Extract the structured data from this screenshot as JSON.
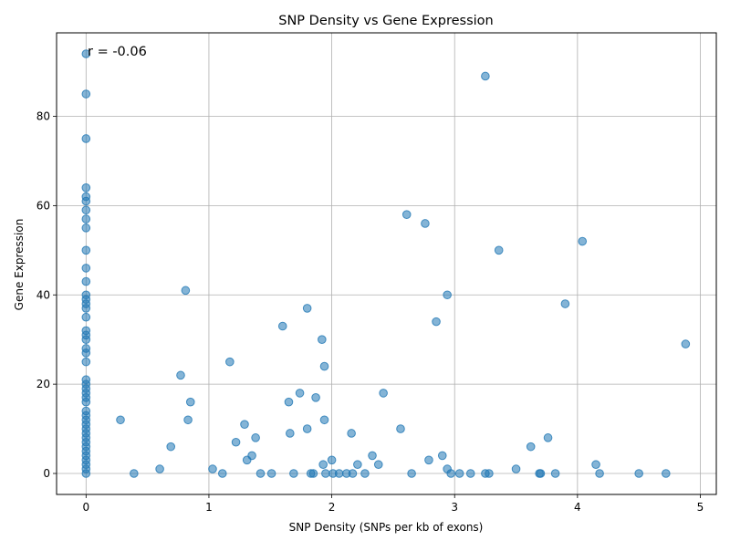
{
  "chart_data": {
    "type": "scatter",
    "title": "SNP Density vs Gene Expression",
    "xlabel": "SNP Density (SNPs per kb of exons)",
    "ylabel": "Gene Expression",
    "annotation": "r = -0.06",
    "xlim": [
      -0.24,
      5.13
    ],
    "ylim": [
      -4.7,
      98.7
    ],
    "xticks": [
      0,
      1,
      2,
      3,
      4,
      5
    ],
    "yticks": [
      0,
      20,
      40,
      60,
      80
    ],
    "grid": true,
    "point_color": "#1f77b4",
    "points": [
      {
        "x": 0,
        "y": 94
      },
      {
        "x": 0,
        "y": 85
      },
      {
        "x": 0,
        "y": 75
      },
      {
        "x": 0,
        "y": 64
      },
      {
        "x": 0,
        "y": 62
      },
      {
        "x": 0,
        "y": 61
      },
      {
        "x": 0,
        "y": 59
      },
      {
        "x": 0,
        "y": 57
      },
      {
        "x": 0,
        "y": 55
      },
      {
        "x": 0,
        "y": 50
      },
      {
        "x": 0,
        "y": 46
      },
      {
        "x": 0,
        "y": 43
      },
      {
        "x": 0,
        "y": 40
      },
      {
        "x": 0,
        "y": 39
      },
      {
        "x": 0,
        "y": 38
      },
      {
        "x": 0,
        "y": 37
      },
      {
        "x": 0,
        "y": 35
      },
      {
        "x": 0,
        "y": 32
      },
      {
        "x": 0,
        "y": 31
      },
      {
        "x": 0,
        "y": 30
      },
      {
        "x": 0,
        "y": 28
      },
      {
        "x": 0,
        "y": 27
      },
      {
        "x": 0,
        "y": 25
      },
      {
        "x": 0,
        "y": 21
      },
      {
        "x": 0,
        "y": 20
      },
      {
        "x": 0,
        "y": 19
      },
      {
        "x": 0,
        "y": 18
      },
      {
        "x": 0,
        "y": 17
      },
      {
        "x": 0,
        "y": 16
      },
      {
        "x": 0,
        "y": 14
      },
      {
        "x": 0,
        "y": 13
      },
      {
        "x": 0,
        "y": 12
      },
      {
        "x": 0,
        "y": 11
      },
      {
        "x": 0,
        "y": 10
      },
      {
        "x": 0,
        "y": 9
      },
      {
        "x": 0,
        "y": 8
      },
      {
        "x": 0,
        "y": 7
      },
      {
        "x": 0,
        "y": 6
      },
      {
        "x": 0,
        "y": 5
      },
      {
        "x": 0,
        "y": 4
      },
      {
        "x": 0,
        "y": 3
      },
      {
        "x": 0,
        "y": 2
      },
      {
        "x": 0,
        "y": 1
      },
      {
        "x": 0,
        "y": 0
      },
      {
        "x": 0.28,
        "y": 12
      },
      {
        "x": 0.39,
        "y": 0
      },
      {
        "x": 0.6,
        "y": 1
      },
      {
        "x": 0.69,
        "y": 6
      },
      {
        "x": 0.77,
        "y": 22
      },
      {
        "x": 0.81,
        "y": 41
      },
      {
        "x": 0.83,
        "y": 12
      },
      {
        "x": 0.85,
        "y": 16
      },
      {
        "x": 1.03,
        "y": 1
      },
      {
        "x": 1.11,
        "y": 0
      },
      {
        "x": 1.17,
        "y": 25
      },
      {
        "x": 1.22,
        "y": 7
      },
      {
        "x": 1.29,
        "y": 11
      },
      {
        "x": 1.31,
        "y": 3
      },
      {
        "x": 1.35,
        "y": 4
      },
      {
        "x": 1.38,
        "y": 8
      },
      {
        "x": 1.42,
        "y": 0
      },
      {
        "x": 1.51,
        "y": 0
      },
      {
        "x": 1.6,
        "y": 33
      },
      {
        "x": 1.65,
        "y": 16
      },
      {
        "x": 1.66,
        "y": 9
      },
      {
        "x": 1.69,
        "y": 0
      },
      {
        "x": 1.74,
        "y": 18
      },
      {
        "x": 1.8,
        "y": 37
      },
      {
        "x": 1.8,
        "y": 10
      },
      {
        "x": 1.83,
        "y": 0
      },
      {
        "x": 1.85,
        "y": 0
      },
      {
        "x": 1.87,
        "y": 17
      },
      {
        "x": 1.92,
        "y": 30
      },
      {
        "x": 1.93,
        "y": 2
      },
      {
        "x": 1.94,
        "y": 24
      },
      {
        "x": 1.94,
        "y": 12
      },
      {
        "x": 1.95,
        "y": 0
      },
      {
        "x": 2.0,
        "y": 3
      },
      {
        "x": 2.01,
        "y": 0
      },
      {
        "x": 2.06,
        "y": 0
      },
      {
        "x": 2.12,
        "y": 0
      },
      {
        "x": 2.16,
        "y": 9
      },
      {
        "x": 2.17,
        "y": 0
      },
      {
        "x": 2.21,
        "y": 2
      },
      {
        "x": 2.27,
        "y": 0
      },
      {
        "x": 2.33,
        "y": 4
      },
      {
        "x": 2.38,
        "y": 2
      },
      {
        "x": 2.42,
        "y": 18
      },
      {
        "x": 2.56,
        "y": 10
      },
      {
        "x": 2.61,
        "y": 58
      },
      {
        "x": 2.65,
        "y": 0
      },
      {
        "x": 2.76,
        "y": 56
      },
      {
        "x": 2.79,
        "y": 3
      },
      {
        "x": 2.85,
        "y": 34
      },
      {
        "x": 2.9,
        "y": 4
      },
      {
        "x": 2.94,
        "y": 40
      },
      {
        "x": 2.94,
        "y": 1
      },
      {
        "x": 2.97,
        "y": 0
      },
      {
        "x": 3.04,
        "y": 0
      },
      {
        "x": 3.13,
        "y": 0
      },
      {
        "x": 3.25,
        "y": 89
      },
      {
        "x": 3.25,
        "y": 0
      },
      {
        "x": 3.28,
        "y": 0
      },
      {
        "x": 3.36,
        "y": 50
      },
      {
        "x": 3.5,
        "y": 1
      },
      {
        "x": 3.62,
        "y": 6
      },
      {
        "x": 3.69,
        "y": 0
      },
      {
        "x": 3.7,
        "y": 0
      },
      {
        "x": 3.76,
        "y": 8
      },
      {
        "x": 3.82,
        "y": 0
      },
      {
        "x": 3.9,
        "y": 38
      },
      {
        "x": 4.04,
        "y": 52
      },
      {
        "x": 4.15,
        "y": 2
      },
      {
        "x": 4.18,
        "y": 0
      },
      {
        "x": 4.5,
        "y": 0
      },
      {
        "x": 4.72,
        "y": 0
      },
      {
        "x": 4.88,
        "y": 29
      }
    ]
  }
}
